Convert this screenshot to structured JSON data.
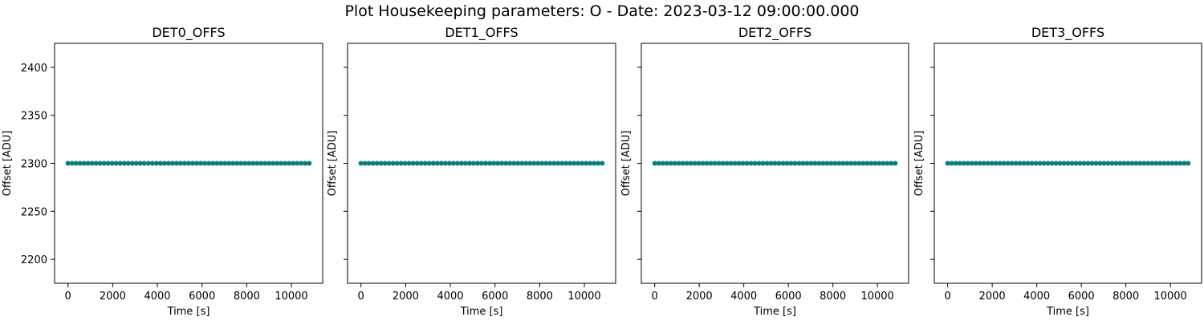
{
  "chart_data": {
    "type": "scatter",
    "suptitle": "Plot Housekeeping parameters: O - Date: 2023-03-12 09:00:00.000",
    "marker_color": "#008080",
    "xlim": [
      -600,
      11400
    ],
    "ylim": [
      2175,
      2425
    ],
    "xticks": [
      0,
      2000,
      4000,
      6000,
      8000,
      10000
    ],
    "yticks": [
      2200,
      2250,
      2300,
      2350,
      2400
    ],
    "sharey": true,
    "series_x_start": 0,
    "series_x_step": 180,
    "series_x_end": 10800,
    "panels": [
      {
        "title": "DET0_OFFS",
        "xlabel": "Time [s]",
        "ylabel": "Offset [ADU]",
        "constant_value": 2300
      },
      {
        "title": "DET1_OFFS",
        "xlabel": "Time [s]",
        "ylabel": "Offset [ADU]",
        "constant_value": 2300
      },
      {
        "title": "DET2_OFFS",
        "xlabel": "Time [s]",
        "ylabel": "Offset [ADU]",
        "constant_value": 2300
      },
      {
        "title": "DET3_OFFS",
        "xlabel": "Time [s]",
        "ylabel": "Offset [ADU]",
        "constant_value": 2300
      }
    ]
  }
}
